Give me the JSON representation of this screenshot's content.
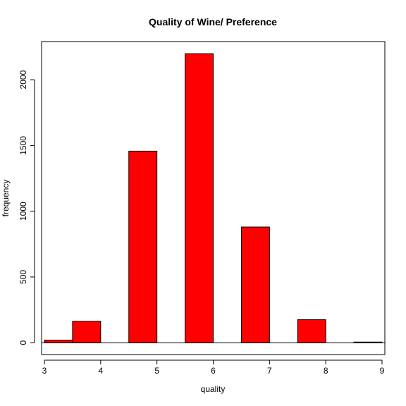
{
  "chart_data": {
    "type": "bar",
    "title": "Quality of Wine/ Preference",
    "xlabel": "quality",
    "ylabel": "frequency",
    "x_ticks": [
      3,
      4,
      5,
      6,
      7,
      8,
      9
    ],
    "y_ticks": [
      0,
      500,
      1000,
      1500,
      2000
    ],
    "xlim": [
      2.95,
      9.05
    ],
    "ylim": [
      -90,
      2290
    ],
    "bar_color": "#ff0000",
    "bars": [
      {
        "x0": 3.0,
        "x1": 3.5,
        "value": 20
      },
      {
        "x0": 3.5,
        "x1": 4.0,
        "value": 163
      },
      {
        "x0": 4.5,
        "x1": 5.0,
        "value": 1457
      },
      {
        "x0": 5.5,
        "x1": 6.0,
        "value": 2198
      },
      {
        "x0": 6.5,
        "x1": 7.0,
        "value": 880
      },
      {
        "x0": 7.5,
        "x1": 8.0,
        "value": 175
      },
      {
        "x0": 8.5,
        "x1": 9.0,
        "value": 5
      }
    ],
    "baseline": 0,
    "grid": false,
    "legend": "none"
  }
}
